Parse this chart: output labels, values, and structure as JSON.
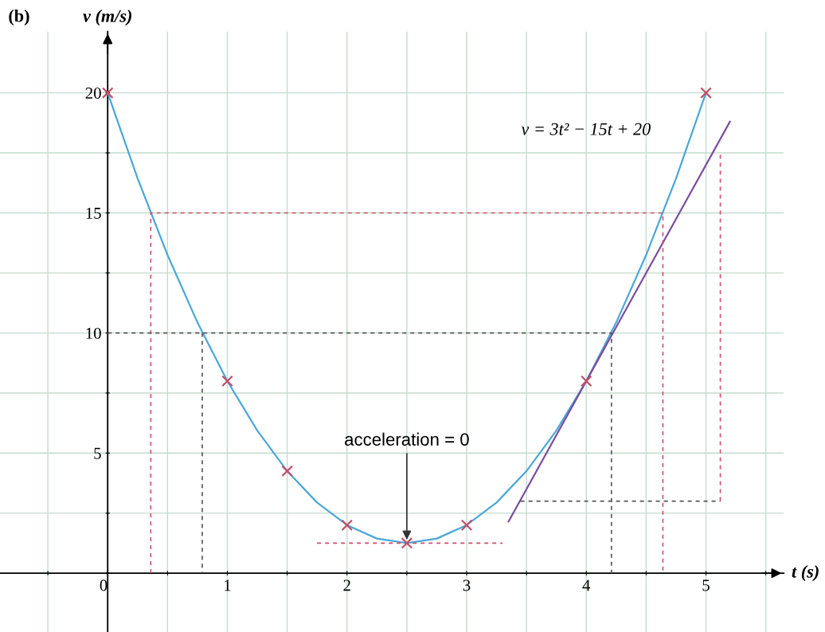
{
  "chart_data": {
    "type": "line",
    "title": "(b)",
    "xlabel": "t (s)",
    "ylabel": "v (m/s)",
    "xlim": [
      -0.9,
      5.65
    ],
    "ylim": [
      -2.45,
      22.55
    ],
    "xticks": [
      {
        "value": -0.5,
        "label": null
      },
      0,
      {
        "value": 0.5,
        "label": null
      },
      1,
      {
        "value": 1.5,
        "label": null
      },
      2,
      {
        "value": 2.5,
        "label": null
      },
      3,
      {
        "value": 3.5,
        "label": null
      },
      4,
      {
        "value": 4.5,
        "label": null
      },
      5,
      {
        "value": 5.5,
        "label": null
      }
    ],
    "yticks": [
      {
        "value": 0,
        "label": null
      },
      {
        "value": 2.5,
        "label": null
      },
      5,
      {
        "value": 7.5,
        "label": null
      },
      10,
      {
        "value": 12.5,
        "label": null
      },
      15,
      {
        "value": 17.5,
        "label": null
      },
      20
    ],
    "grid": true,
    "series": [
      {
        "color": "#4aa8d8",
        "x": [
          0,
          0.25,
          0.5,
          0.75,
          1,
          1.25,
          1.5,
          1.75,
          2,
          2.25,
          2.5,
          2.75,
          3,
          3.25,
          3.5,
          3.75,
          4,
          4.25,
          4.5,
          4.75,
          5
        ],
        "values": [
          20,
          16.44,
          13.25,
          10.44,
          8,
          5.94,
          4.25,
          2.94,
          2,
          1.44,
          1.25,
          1.44,
          2,
          2.94,
          4.25,
          5.94,
          8,
          10.44,
          13.25,
          16.44,
          20
        ]
      },
      {
        "color": "#7b4f9e",
        "x": [
          3.35,
          5.2
        ],
        "values": [
          2.15,
          18.8
        ]
      },
      {
        "type": "line",
        "color": "#d0506a",
        "line_style": "dashed",
        "x": [
          0.36,
          0.36,
          4.64,
          4.64
        ],
        "values": [
          0,
          15,
          15,
          0
        ]
      },
      {
        "type": "line",
        "color": "#555555",
        "line_style": "dashed",
        "x": [
          0,
          4.21,
          4.21
        ],
        "values": [
          10,
          10,
          0
        ]
      },
      {
        "type": "line",
        "color": "#555555",
        "line_style": "dashed",
        "x": [
          0.79,
          0.79
        ],
        "values": [
          10,
          0
        ]
      },
      {
        "type": "line",
        "color": "#555555",
        "line_style": "dashed",
        "x": [
          3.45,
          5.12
        ],
        "values": [
          3,
          3
        ]
      },
      {
        "type": "line",
        "color": "#d0506a",
        "line_style": "dashed",
        "x": [
          5.12,
          5.12
        ],
        "values": [
          3,
          17.5
        ]
      },
      {
        "type": "line",
        "color": "#d0506a",
        "line_style": "dashed",
        "x": [
          1.75,
          3.3
        ],
        "values": [
          1.25,
          1.25
        ]
      },
      {
        "type": "scatter",
        "color": "#c0506a",
        "marker": "cross",
        "x": [
          0,
          1,
          1.5,
          2,
          2.5,
          3,
          4,
          5
        ],
        "values": [
          20,
          8,
          4.25,
          2,
          1.25,
          2,
          8,
          20
        ]
      }
    ],
    "annotations": [
      {
        "text": "acceleration = 0",
        "x": 2.5,
        "y": 1.25
      },
      "v = 3t² − 15t + 20"
    ]
  }
}
